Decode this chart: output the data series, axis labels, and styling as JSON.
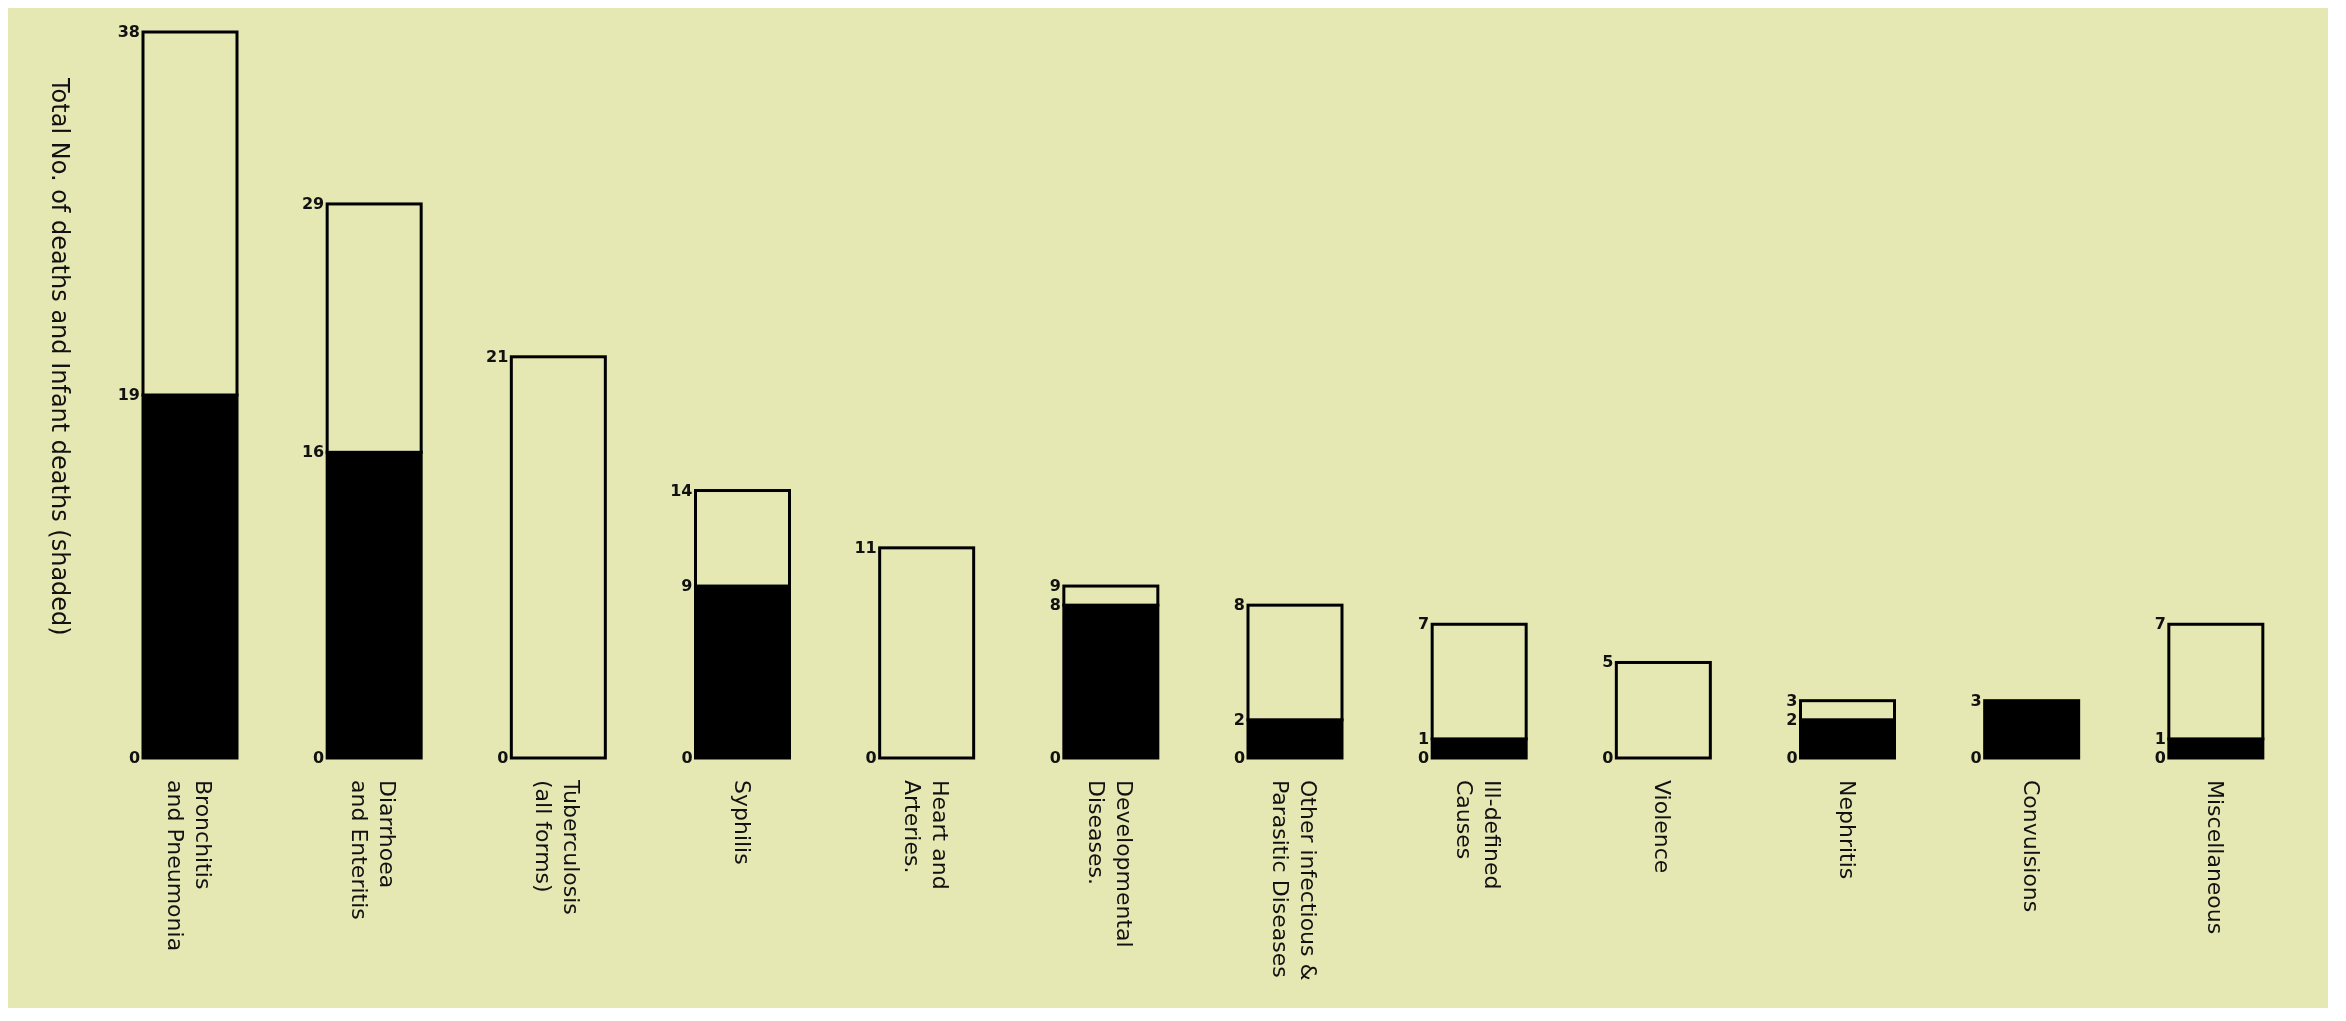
{
  "chart_data": {
    "type": "bar",
    "stacked": true,
    "ylabel": "Total No. of deaths and Infant deaths (shaded)",
    "categories": [
      "Bronchitis and Pneumonia",
      "Diarrhoea and Enteritis",
      "Tuberculosis (all forms)",
      "Syphilis",
      "Heart and Arteries.",
      "Developmental Diseases.",
      "Other infectious & Parasitic Diseases",
      "Ill-defined Causes",
      "Violence",
      "Nephritis",
      "Convulsions",
      "Miscellaneous"
    ],
    "series": [
      {
        "color": "#000000",
        "values": [
          19,
          16,
          0,
          9,
          0,
          8,
          2,
          1,
          0,
          2,
          3,
          1
        ],
        "value_labels": [
          "19",
          "16",
          null,
          "9",
          null,
          "8",
          "2",
          "1",
          null,
          "2",
          null,
          "1"
        ]
      },
      {
        "color": "#e6e8b4",
        "values": [
          19,
          13,
          21,
          5,
          11,
          1,
          6,
          6,
          5,
          1,
          0,
          6
        ]
      }
    ],
    "totals": [
      "38",
      "29",
      "21",
      "14",
      "11",
      "9",
      "8",
      "7",
      "5",
      "3",
      "3",
      "7"
    ],
    "ylim": [
      0,
      38
    ],
    "annotations": [
      "0",
      "0",
      "0",
      "0",
      "0",
      "0",
      "0",
      "0",
      "0",
      "0",
      "0",
      "0"
    ],
    "legend": false
  }
}
